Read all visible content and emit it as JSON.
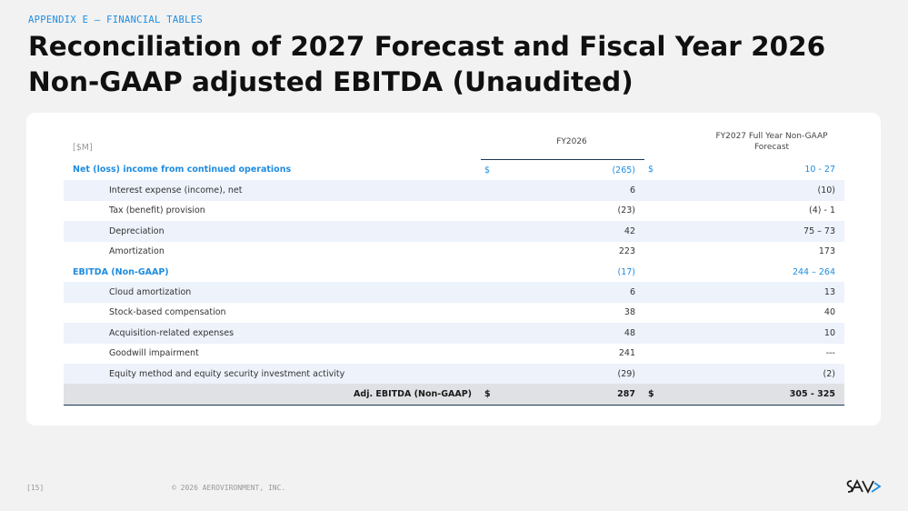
{
  "kicker": "APPENDIX E – FINANCIAL TABLES",
  "title": "Reconciliation of 2027 Forecast and Fiscal Year 2026 Non-GAAP adjusted EBITDA (Unaudited)",
  "table": {
    "unit_label": "[$M]",
    "col_fy2026": "FY2026",
    "col_fy2027": "FY2027 Full Year Non-GAAP Forecast",
    "rows": [
      {
        "label": "Net (loss) income from continued operations",
        "fy2026_sign": "$",
        "fy2026": "(265)",
        "fy2027_sign": "$",
        "fy2027": "10 - 27"
      },
      {
        "label": "Interest expense (income), net",
        "fy2026": "6",
        "fy2027": "(10)"
      },
      {
        "label": "Tax (benefit) provision",
        "fy2026": "(23)",
        "fy2027": "(4) - 1"
      },
      {
        "label": "Depreciation",
        "fy2026": "42",
        "fy2027": "75 – 73"
      },
      {
        "label": "Amortization",
        "fy2026": "223",
        "fy2027": "173"
      },
      {
        "label": "EBITDA (Non-GAAP)",
        "fy2026": "(17)",
        "fy2027": "244 – 264"
      },
      {
        "label": "Cloud amortization",
        "fy2026": "6",
        "fy2027": "13"
      },
      {
        "label": "Stock-based compensation",
        "fy2026": "38",
        "fy2027": "40"
      },
      {
        "label": "Acquisition-related expenses",
        "fy2026": "48",
        "fy2027": "10"
      },
      {
        "label": "Goodwill impairment",
        "fy2026": "241",
        "fy2027": "---"
      },
      {
        "label": "Equity method and equity security investment activity",
        "fy2026": "(29)",
        "fy2027": "(2)"
      }
    ],
    "total": {
      "label": "Adj. EBITDA (Non-GAAP)",
      "fy2026_sign": "$",
      "fy2026": "287",
      "fy2027_sign": "$",
      "fy2027": "305 - 325"
    }
  },
  "footer": {
    "page_number": "[15]",
    "copyright": "© 2026 AEROVIRONMENT, INC.",
    "logo": "AV"
  }
}
